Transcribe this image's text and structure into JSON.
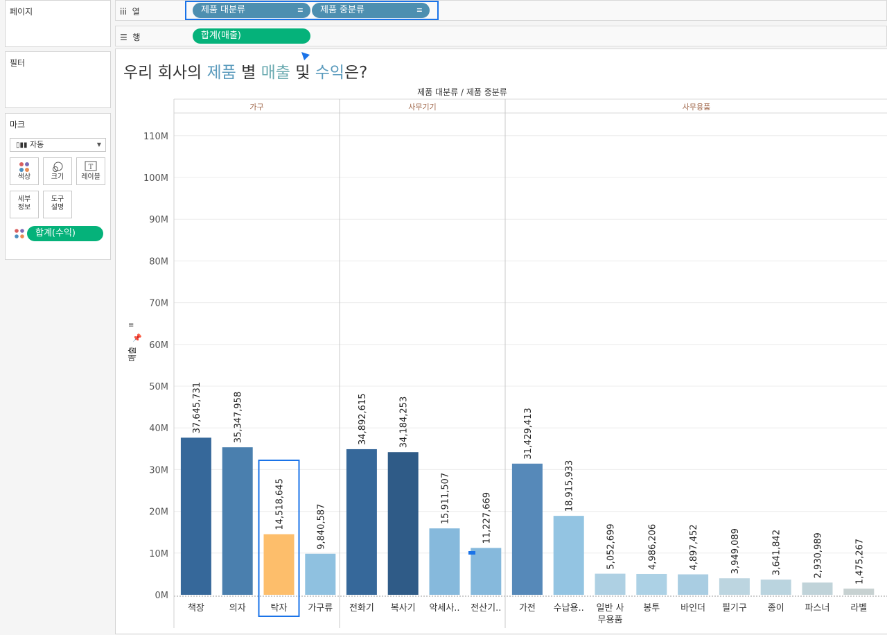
{
  "sidebar": {
    "pages_label": "페이지",
    "filters_label": "필터",
    "marks": {
      "label": "마크",
      "type_label": "자동",
      "buttons": [
        "색상",
        "크기",
        "레이블",
        "세부\n정보",
        "도구\n설명"
      ],
      "field_pill": "합계(수익)"
    }
  },
  "shelves": {
    "columns": {
      "label": "열",
      "pills": [
        "제품 대분류",
        "제품 중분류"
      ]
    },
    "rows": {
      "label": "행",
      "pills": [
        "합계(매출)"
      ]
    }
  },
  "colors": {
    "accent": "#5b9bbd",
    "pill_dim": "#4d8fb0",
    "pill_measure": "#05b27a",
    "highlight": "#fdbe6b",
    "selection": "#1a73e8"
  },
  "view": {
    "title_parts": [
      {
        "text": "우리 회사의 ",
        "accent": false
      },
      {
        "text": "제품",
        "accent": true
      },
      {
        "text": " 별 ",
        "accent": false
      },
      {
        "text": "매출",
        "accent": true
      },
      {
        "text": " 및 ",
        "accent": false
      },
      {
        "text": "수익",
        "accent": true
      },
      {
        "text": "은?",
        "accent": false
      }
    ]
  },
  "chart_data": {
    "type": "bar",
    "header": "제품 대분류  /  제품 중분류",
    "ylabel": "매출",
    "ylim": [
      0,
      115000000
    ],
    "yticks": [
      "0M",
      "10M",
      "20M",
      "30M",
      "40M",
      "50M",
      "60M",
      "70M",
      "80M",
      "90M",
      "100M",
      "110M"
    ],
    "groups": [
      {
        "name": "가구",
        "categories": [
          "책장",
          "의자",
          "탁자",
          "가구류"
        ],
        "values": [
          37645731,
          35347958,
          14518645,
          9840587
        ],
        "labels": [
          "37,645,731",
          "35,347,958",
          "14,518,645",
          "9,840,587"
        ],
        "colors": [
          "#36689a",
          "#4a7fae",
          "#fdbe6b",
          "#8fc1e0"
        ]
      },
      {
        "name": "사무기기",
        "categories": [
          "전화기",
          "복사기",
          "악세사..",
          "전산기.."
        ],
        "values": [
          34892615,
          34184253,
          15911507,
          11227669
        ],
        "labels": [
          "34,892,615",
          "34,184,253",
          "15,911,507",
          "11,227,669"
        ],
        "colors": [
          "#36689a",
          "#2f5b87",
          "#86b9dc",
          "#86b9dc"
        ]
      },
      {
        "name": "사무용품",
        "categories": [
          "가전",
          "수납용..",
          "일반 사\n무용품",
          "봉투",
          "바인더",
          "필기구",
          "종이",
          "파스너",
          "라벨"
        ],
        "values": [
          31429413,
          18915933,
          5052699,
          4986206,
          4897452,
          3949089,
          3641842,
          2930989,
          1475267
        ],
        "labels": [
          "31,429,413",
          "18,915,933",
          "5,052,699",
          "4,986,206",
          "4,897,452",
          "3,949,089",
          "3,641,842",
          "2,930,989",
          "1,475,267"
        ],
        "colors": [
          "#5689b9",
          "#93c4e2",
          "#aed0e3",
          "#acd1e5",
          "#a9cde2",
          "#bcd5e0",
          "#bad4df",
          "#c0d3d9",
          "#c7d1d1"
        ]
      }
    ],
    "highlighted": "탁자",
    "grid": true
  }
}
